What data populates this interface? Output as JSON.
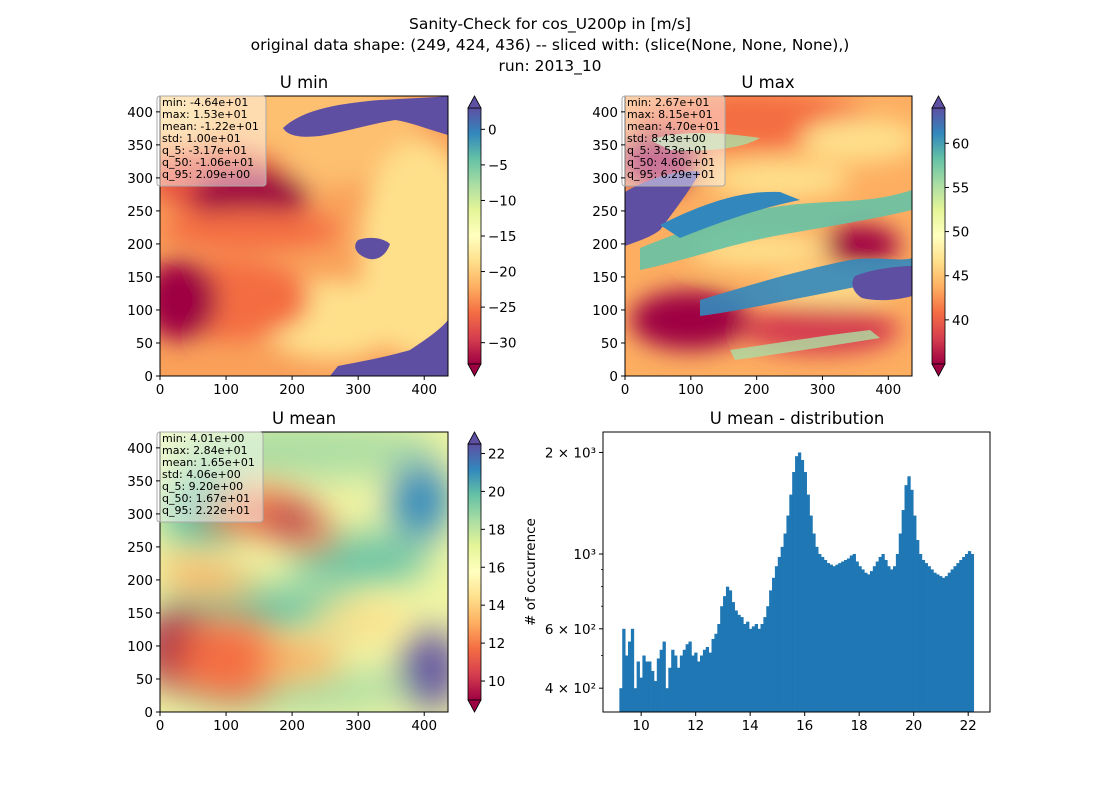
{
  "figure": {
    "title_lines": [
      "Sanity-Check for cos_U200p in [m/s]",
      "original data shape: (249, 424, 436) -- sliced with: (slice(None, None, None),)",
      "run: 2013_10"
    ]
  },
  "chart_data": [
    {
      "type": "heatmap",
      "title": "U min",
      "colormap": "Spectral",
      "xlim": [
        0,
        436
      ],
      "ylim": [
        0,
        424
      ],
      "xticks": [
        "0",
        "100",
        "200",
        "300",
        "400"
      ],
      "yticks": [
        "0",
        "50",
        "100",
        "150",
        "200",
        "250",
        "300",
        "350",
        "400"
      ],
      "colorbar": {
        "range": [
          -33,
          3
        ],
        "ticks": [
          "0",
          "−5",
          "−10",
          "−15",
          "−20",
          "−25",
          "−30"
        ],
        "tick_values": [
          0,
          -5,
          -10,
          -15,
          -20,
          -25,
          -30
        ],
        "extend": "both"
      },
      "stats": [
        "min: -4.64e+01",
        "max: 1.53e+01",
        "mean: -1.22e+01",
        "std: 1.00e+01",
        "q_5: -3.17e+01",
        "q_50: -1.06e+01",
        "q_95: 2.09e+00"
      ]
    },
    {
      "type": "heatmap",
      "title": "U max",
      "colormap": "Spectral",
      "xlim": [
        0,
        436
      ],
      "ylim": [
        0,
        424
      ],
      "xticks": [
        "0",
        "100",
        "200",
        "300",
        "400"
      ],
      "yticks": [
        "0",
        "50",
        "100",
        "150",
        "200",
        "250",
        "300",
        "350",
        "400"
      ],
      "colorbar": {
        "range": [
          35,
          64
        ],
        "ticks": [
          "60",
          "55",
          "50",
          "45",
          "40"
        ],
        "tick_values": [
          60,
          55,
          50,
          45,
          40
        ],
        "extend": "both"
      },
      "stats": [
        "min: 2.67e+01",
        "max: 8.15e+01",
        "mean: 4.70e+01",
        "std: 8.43e+00",
        "q_5: 3.53e+01",
        "q_50: 4.60e+01",
        "q_95: 6.29e+01"
      ]
    },
    {
      "type": "heatmap",
      "title": "U mean",
      "colormap": "Spectral",
      "xlim": [
        0,
        436
      ],
      "ylim": [
        0,
        424
      ],
      "xticks": [
        "0",
        "100",
        "200",
        "300",
        "400"
      ],
      "yticks": [
        "0",
        "50",
        "100",
        "150",
        "200",
        "250",
        "300",
        "350",
        "400"
      ],
      "colorbar": {
        "range": [
          9,
          22.5
        ],
        "ticks": [
          "22",
          "20",
          "18",
          "16",
          "14",
          "12",
          "10"
        ],
        "tick_values": [
          22,
          20,
          18,
          16,
          14,
          12,
          10
        ],
        "extend": "both"
      },
      "stats": [
        "min: 4.01e+00",
        "max: 2.84e+01",
        "mean: 1.65e+01",
        "std: 4.06e+00",
        "q_5: 9.20e+00",
        "q_50: 1.67e+01",
        "q_95: 2.22e+01"
      ]
    },
    {
      "type": "bar",
      "title": "U mean - distribution",
      "ylabel": "# of occurrence",
      "yscale": "log",
      "color": "#1f77b4",
      "xlim": [
        8.6,
        22.8
      ],
      "ylim": [
        340,
        2300
      ],
      "xticks": [
        "10",
        "12",
        "14",
        "16",
        "18",
        "20",
        "22"
      ],
      "xtick_values": [
        10,
        12,
        14,
        16,
        18,
        20,
        22
      ],
      "yticks": [
        "2 × 10³",
        "10³",
        "6 × 10²",
        "4 × 10²"
      ],
      "ytick_values": [
        2000,
        1000,
        600,
        400
      ],
      "bins": {
        "start": 9.2,
        "end": 22.2
      },
      "values": [
        400,
        600,
        500,
        550,
        600,
        400,
        480,
        430,
        500,
        480,
        480,
        450,
        420,
        490,
        520,
        550,
        400,
        460,
        520,
        500,
        460,
        500,
        520,
        540,
        550,
        500,
        510,
        480,
        500,
        520,
        530,
        510,
        560,
        580,
        620,
        700,
        750,
        800,
        780,
        720,
        680,
        660,
        650,
        620,
        630,
        600,
        610,
        620,
        600,
        620,
        650,
        700,
        780,
        850,
        920,
        980,
        1050,
        1150,
        1300,
        1500,
        1750,
        1950,
        2000,
        1900,
        1750,
        1500,
        1300,
        1150,
        1050,
        1000,
        980,
        960,
        940,
        930,
        920,
        930,
        940,
        950,
        960,
        970,
        990,
        1000,
        950,
        920,
        900,
        880,
        870,
        890,
        920,
        950,
        980,
        1000,
        960,
        920,
        900,
        920,
        1000,
        1150,
        1350,
        1600,
        1700,
        1550,
        1300,
        1100,
        1000,
        960,
        940,
        920,
        900,
        880,
        870,
        860,
        850,
        860,
        880,
        900,
        920,
        940,
        960,
        980,
        1000,
        1020,
        1000
      ]
    }
  ]
}
